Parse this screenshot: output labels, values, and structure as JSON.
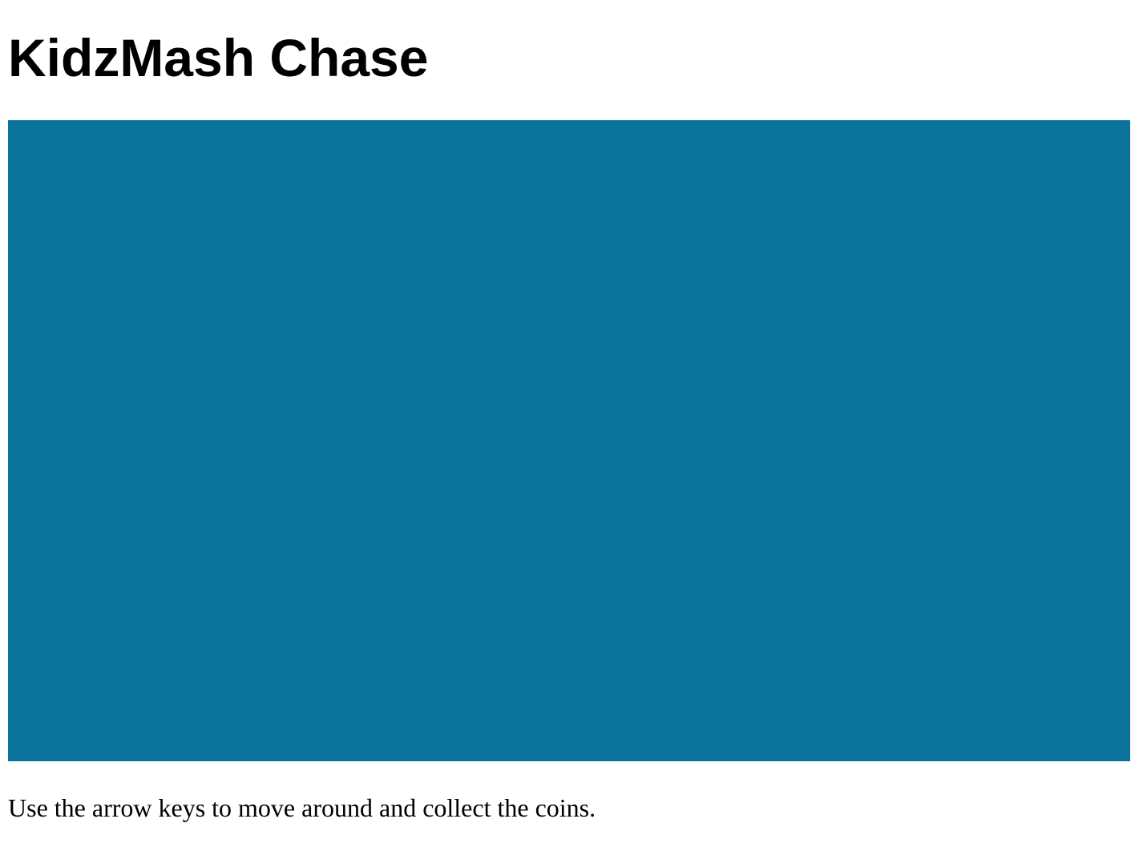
{
  "page": {
    "title": "KidzMash Chase",
    "instructions": "Use the arrow keys to move around and collect the coins."
  },
  "game": {
    "canvas_color": "#0b7299",
    "controls": "arrow-keys"
  }
}
